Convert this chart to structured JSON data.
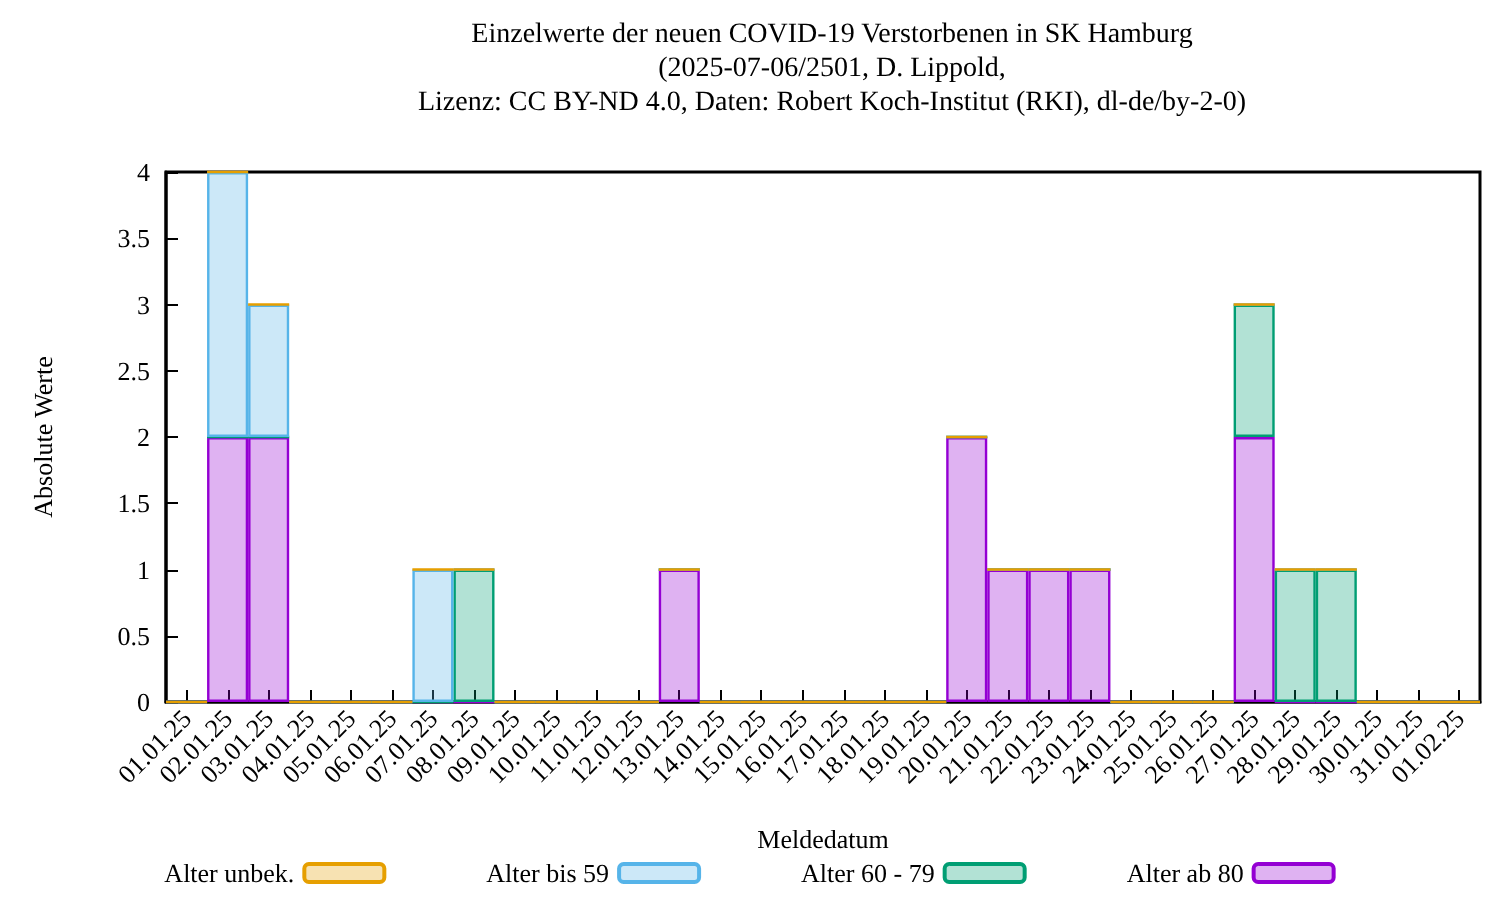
{
  "chart_data": {
    "type": "bar",
    "title": "Einzelwerte der neuen COVID-19 Verstorbenen in SK Hamburg\n(2025-07-06/2501, D. Lippold,\nLizenz: CC BY-ND 4.0, Daten: Robert Koch-Institut (RKI), dl-de/by-2-0)",
    "xlabel": "Meldedatum",
    "ylabel": "Absolute Werte",
    "categories": [
      "01.01.25",
      "02.01.25",
      "03.01.25",
      "04.01.25",
      "05.01.25",
      "06.01.25",
      "07.01.25",
      "08.01.25",
      "09.01.25",
      "10.01.25",
      "11.01.25",
      "12.01.25",
      "13.01.25",
      "14.01.25",
      "15.01.25",
      "16.01.25",
      "17.01.25",
      "18.01.25",
      "19.01.25",
      "20.01.25",
      "21.01.25",
      "22.01.25",
      "23.01.25",
      "24.01.25",
      "25.01.25",
      "26.01.25",
      "27.01.25",
      "28.01.25",
      "29.01.25",
      "30.01.25",
      "31.01.25",
      "01.02.25"
    ],
    "stacked": true,
    "series": [
      {
        "name": "Alter ab 80",
        "color": "#9400d3",
        "values": [
          0,
          2,
          2,
          0,
          0,
          0,
          0,
          0,
          0,
          0,
          0,
          0,
          1,
          0,
          0,
          0,
          0,
          0,
          0,
          2,
          1,
          1,
          1,
          0,
          0,
          0,
          2,
          0,
          0,
          0,
          0,
          0
        ]
      },
      {
        "name": "Alter 60 - 79",
        "color": "#009e73",
        "values": [
          0,
          0,
          0,
          0,
          0,
          0,
          0,
          1,
          0,
          0,
          0,
          0,
          0,
          0,
          0,
          0,
          0,
          0,
          0,
          0,
          0,
          0,
          0,
          0,
          0,
          0,
          1,
          1,
          1,
          0,
          0,
          0
        ]
      },
      {
        "name": "Alter bis 59",
        "color": "#56b4e9",
        "values": [
          0,
          2,
          1,
          0,
          0,
          0,
          1,
          0,
          0,
          0,
          0,
          0,
          0,
          0,
          0,
          0,
          0,
          0,
          0,
          0,
          0,
          0,
          0,
          0,
          0,
          0,
          0,
          0,
          0,
          0,
          0,
          0
        ]
      },
      {
        "name": "Alter unbek.",
        "color": "#e69f00",
        "values": [
          0,
          0,
          0,
          0,
          0,
          0,
          0,
          0,
          0,
          0,
          0,
          0,
          0,
          0,
          0,
          0,
          0,
          0,
          0,
          0,
          0,
          0,
          0,
          0,
          0,
          0,
          0,
          0,
          0,
          0,
          0,
          0
        ]
      }
    ],
    "ylim": [
      0,
      4
    ],
    "yticks": [
      0,
      0.5,
      1,
      1.5,
      2,
      2.5,
      3,
      3.5,
      4
    ],
    "grid": false,
    "legend": "bottom"
  }
}
